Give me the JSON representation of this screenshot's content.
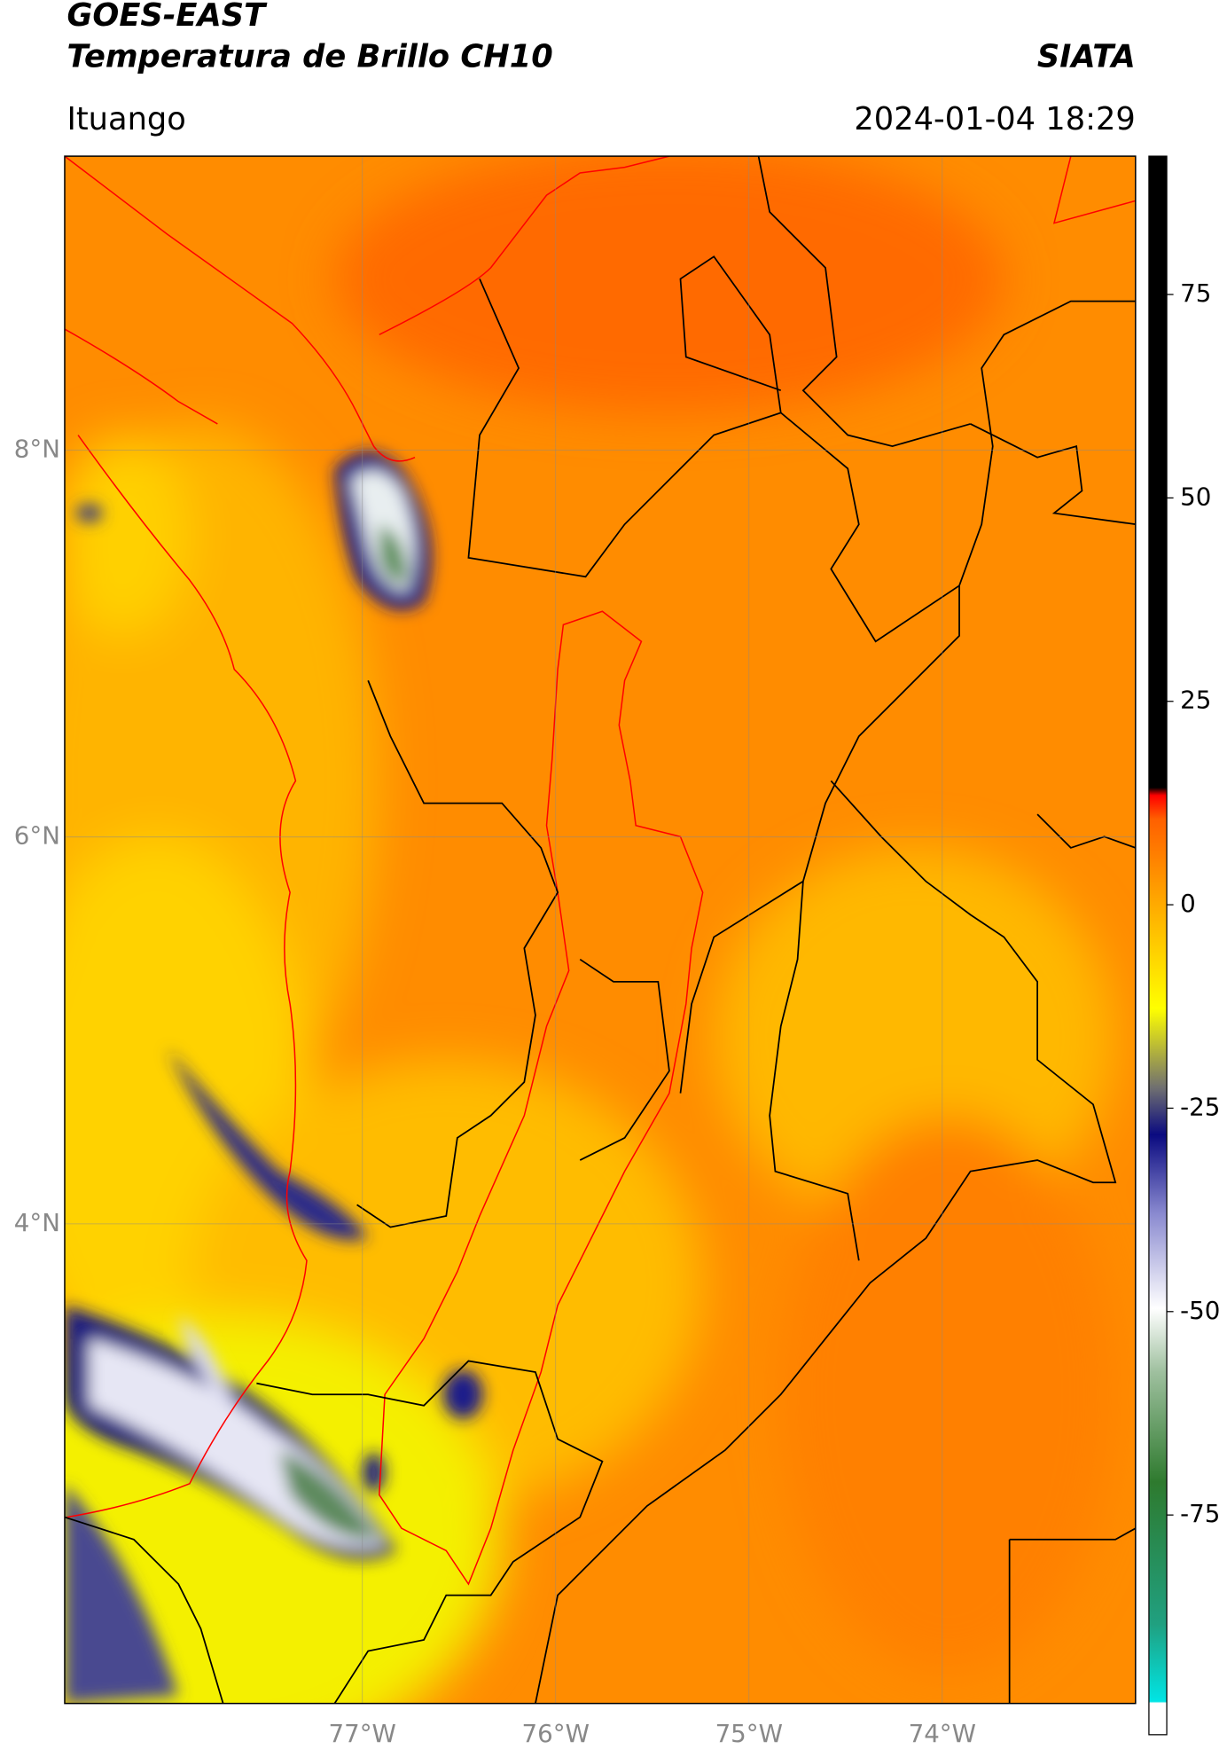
{
  "header": {
    "title": "GOES-EAST",
    "subtitle": "Temperatura de Brillo CH10",
    "source": "SIATA",
    "location": "Ituango",
    "datetime": "2024-01-04 18:29"
  },
  "map": {
    "xlim": [
      -78.54,
      -73.0
    ],
    "ylim": [
      1.52,
      9.52
    ],
    "xticks": [
      {
        "value": -77,
        "label": "77°W"
      },
      {
        "value": -76,
        "label": "76°W"
      },
      {
        "value": -75,
        "label": "75°W"
      },
      {
        "value": -74,
        "label": "74°W"
      }
    ],
    "yticks": [
      {
        "value": 4,
        "label": "4°N"
      },
      {
        "value": 6,
        "label": "6°N"
      },
      {
        "value": 8,
        "label": "8°N"
      }
    ],
    "grid": true
  },
  "colorbar": {
    "lim": [
      -102,
      92
    ],
    "ticks": [
      -75,
      -50,
      -25,
      0,
      25,
      50,
      75
    ]
  }
}
